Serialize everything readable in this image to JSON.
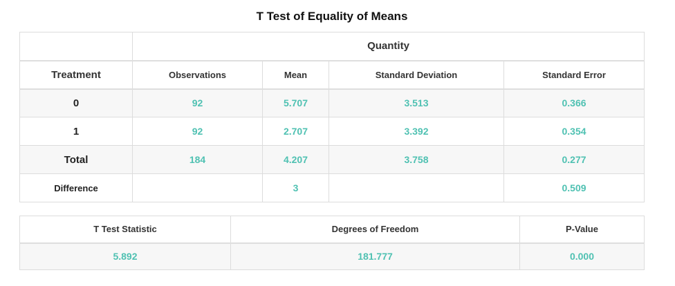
{
  "title": "T Test of Equality of Means",
  "table": {
    "group_header": "Quantity",
    "treatment_header": "Treatment",
    "columns": [
      "Observations",
      "Mean",
      "Standard Deviation",
      "Standard Error"
    ],
    "rows": [
      {
        "label": "0",
        "observations": "92",
        "mean": "5.707",
        "std_dev": "3.513",
        "std_err": "0.366"
      },
      {
        "label": "1",
        "observations": "92",
        "mean": "2.707",
        "std_dev": "3.392",
        "std_err": "0.354"
      },
      {
        "label": "Total",
        "observations": "184",
        "mean": "4.207",
        "std_dev": "3.758",
        "std_err": "0.277"
      },
      {
        "label": "Difference",
        "observations": "",
        "mean": "3",
        "std_dev": "",
        "std_err": "0.509"
      }
    ]
  },
  "stats": {
    "headers": [
      "T Test Statistic",
      "Degrees of Freedom",
      "P-Value"
    ],
    "values": [
      "5.892",
      "181.777",
      "0.000"
    ]
  },
  "colors": {
    "value_teal": "#4fc1b2",
    "border": "#dcdcdc",
    "row_shade": "#f7f7f7"
  }
}
